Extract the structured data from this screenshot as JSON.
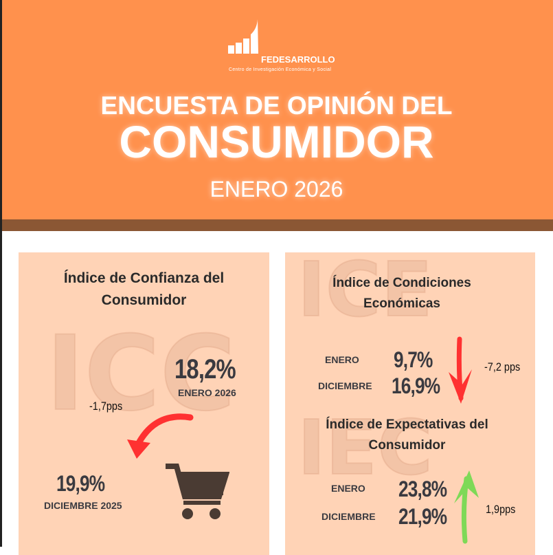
{
  "logo": {
    "name": "FEDESARROLLO",
    "subtitle": "Centro de Investigación Económica y Social"
  },
  "header": {
    "line1": "ENCUESTA DE OPINIÓN DEL",
    "line2": "CONSUMIDOR",
    "period": "ENERO 2026"
  },
  "icc": {
    "title": "Índice de Confianza del Consumidor",
    "watermark": "ICC",
    "current_value": "18,2%",
    "current_label": "ENERO 2026",
    "previous_value": "19,9%",
    "previous_label": "DICIEMBRE 2025",
    "change": "-1,7pps"
  },
  "ice": {
    "title": "Índice de Condiciones Económicas",
    "watermark": "ICE",
    "rows": [
      {
        "label": "ENERO",
        "value": "9,7%"
      },
      {
        "label": "DICIEMBRE",
        "value": "16,9%"
      }
    ],
    "change": "-7,2 pps"
  },
  "iec": {
    "title": "Índice de Expectativas del Consumidor",
    "watermark": "IEC",
    "rows": [
      {
        "label": "ENERO",
        "value": "23,8%"
      },
      {
        "label": "DICIEMBRE",
        "value": "21,9%"
      }
    ],
    "change": "1,9pps"
  },
  "colors": {
    "header": "#FF914D",
    "band": "#8B5734",
    "card": "#FFD3B6",
    "down": "#FF3131",
    "up": "#7ED957"
  }
}
